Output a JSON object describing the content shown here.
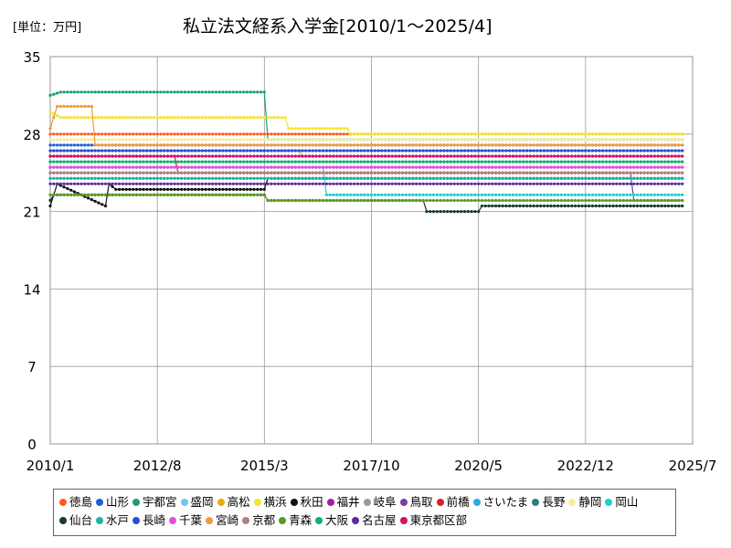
{
  "chart_data": {
    "type": "line",
    "unit_label": "[単位：万円]",
    "title": "私立法文経系入学金[2010/1～2025/4]",
    "x_ticks": [
      "2010/1",
      "2012/8",
      "2015/3",
      "2017/10",
      "2020/5",
      "2022/12",
      "2025/7"
    ],
    "y_ticks": [
      "0",
      "7",
      "14",
      "21",
      "28",
      "35"
    ],
    "ylim": [
      0,
      35
    ],
    "xlim": [
      "2010/1",
      "2025/7"
    ],
    "grid": true,
    "legend_position": "bottom",
    "series": [
      {
        "name": "徳島",
        "color": "#ff5a1f",
        "x": [
          "2010/1",
          "2025/4"
        ],
        "y": [
          28.0,
          28.0
        ]
      },
      {
        "name": "山形",
        "color": "#1f5fd8",
        "x": [
          "2010/1",
          "2025/1",
          "2025/4"
        ],
        "y": [
          27.0,
          27.0,
          27.0
        ]
      },
      {
        "name": "宇都宮",
        "color": "#19a070",
        "x": [
          "2010/1",
          "2010/4",
          "2015/3",
          "2015/4",
          "2025/4"
        ],
        "y": [
          31.5,
          31.8,
          31.8,
          27.5,
          27.5
        ]
      },
      {
        "name": "盛岡",
        "color": "#6ec6f0",
        "x": [
          "2010/1",
          "2025/4"
        ],
        "y": [
          26.0,
          26.0
        ]
      },
      {
        "name": "高松",
        "color": "#f0a800",
        "x": [
          "2010/1",
          "2016/1",
          "2016/2",
          "2025/4"
        ],
        "y": [
          26.5,
          26.5,
          26.0,
          26.0
        ]
      },
      {
        "name": "横浜",
        "color": "#f5e62a",
        "x": [
          "2010/1",
          "2010/4",
          "2015/9",
          "2015/10",
          "2017/3",
          "2017/4",
          "2025/4"
        ],
        "y": [
          30.0,
          29.5,
          29.5,
          28.5,
          28.5,
          28.0,
          28.0
        ]
      },
      {
        "name": "秋田",
        "color": "#111111",
        "x": [
          "2010/1",
          "2010/3",
          "2011/5",
          "2011/6",
          "2011/8",
          "2012/5",
          "2015/3",
          "2015/4",
          "2025/4"
        ],
        "y": [
          21.5,
          23.5,
          21.5,
          23.5,
          23.0,
          23.0,
          23.0,
          24.0,
          24.0
        ]
      },
      {
        "name": "福井",
        "color": "#9b1fa8",
        "x": [
          "2010/1",
          "2025/4"
        ],
        "y": [
          25.0,
          25.0
        ]
      },
      {
        "name": "岐阜",
        "color": "#8f9ca8",
        "x": [
          "2010/1",
          "2025/4"
        ],
        "y": [
          25.5,
          25.5
        ]
      },
      {
        "name": "鳥取",
        "color": "#7a3fa0",
        "x": [
          "2010/1",
          "2024/1",
          "2024/2",
          "2025/4"
        ],
        "y": [
          24.5,
          24.5,
          22.0,
          22.0
        ]
      },
      {
        "name": "前橋",
        "color": "#d8202a",
        "x": [
          "2010/1",
          "2013/1",
          "2013/2",
          "2025/4"
        ],
        "y": [
          26.0,
          26.0,
          24.5,
          24.5
        ]
      },
      {
        "name": "さいたま",
        "color": "#2fa8e8",
        "x": [
          "2010/1",
          "2025/4"
        ],
        "y": [
          26.5,
          26.5
        ]
      },
      {
        "name": "長野",
        "color": "#2f7f7f",
        "x": [
          "2010/1",
          "2025/4"
        ],
        "y": [
          24.0,
          24.0
        ]
      },
      {
        "name": "静岡",
        "color": "#f5eda0",
        "x": [
          "2010/1",
          "2025/4"
        ],
        "y": [
          27.5,
          27.5
        ]
      },
      {
        "name": "岡山",
        "color": "#22cfcf",
        "x": [
          "2010/1",
          "2016/8",
          "2016/9",
          "2025/4"
        ],
        "y": [
          25.0,
          25.0,
          22.5,
          22.5
        ]
      },
      {
        "name": "仙台",
        "color": "#1a3a2a",
        "x": [
          "2010/1",
          "2010/2",
          "2015/3",
          "2015/4",
          "2019/1",
          "2019/2",
          "2020/5",
          "2020/6",
          "2025/4"
        ],
        "y": [
          22.0,
          22.5,
          22.5,
          22.0,
          22.0,
          21.0,
          21.0,
          21.5,
          21.5
        ]
      },
      {
        "name": "水戸",
        "color": "#1fb5a0",
        "x": [
          "2010/1",
          "2025/4"
        ],
        "y": [
          24.0,
          24.0
        ]
      },
      {
        "name": "長崎",
        "color": "#2a4fd0",
        "x": [
          "2010/1",
          "2025/4"
        ],
        "y": [
          26.5,
          26.5
        ]
      },
      {
        "name": "千葉",
        "color": "#e050e0",
        "x": [
          "2010/1",
          "2025/4"
        ],
        "y": [
          25.0,
          25.0
        ]
      },
      {
        "name": "宮崎",
        "color": "#f09a3a",
        "x": [
          "2010/1",
          "2010/3",
          "2011/1",
          "2011/2",
          "2025/4"
        ],
        "y": [
          28.5,
          30.5,
          30.5,
          27.0,
          27.0
        ]
      },
      {
        "name": "京都",
        "color": "#b08080",
        "x": [
          "2010/1",
          "2025/4"
        ],
        "y": [
          24.5,
          24.5
        ]
      },
      {
        "name": "青森",
        "color": "#5a9a20",
        "x": [
          "2010/1",
          "2015/3",
          "2015/4",
          "2025/4"
        ],
        "y": [
          22.5,
          22.5,
          22.0,
          22.0
        ]
      },
      {
        "name": "大阪",
        "color": "#10b070",
        "x": [
          "2010/1",
          "2025/4"
        ],
        "y": [
          25.5,
          25.5
        ]
      },
      {
        "name": "名古屋",
        "color": "#5a2aa0",
        "x": [
          "2010/1",
          "2025/4"
        ],
        "y": [
          23.5,
          23.5
        ]
      },
      {
        "name": "東京都区部",
        "color": "#d01060",
        "x": [
          "2010/1",
          "2025/4"
        ],
        "y": [
          26.0,
          26.0
        ]
      }
    ]
  }
}
